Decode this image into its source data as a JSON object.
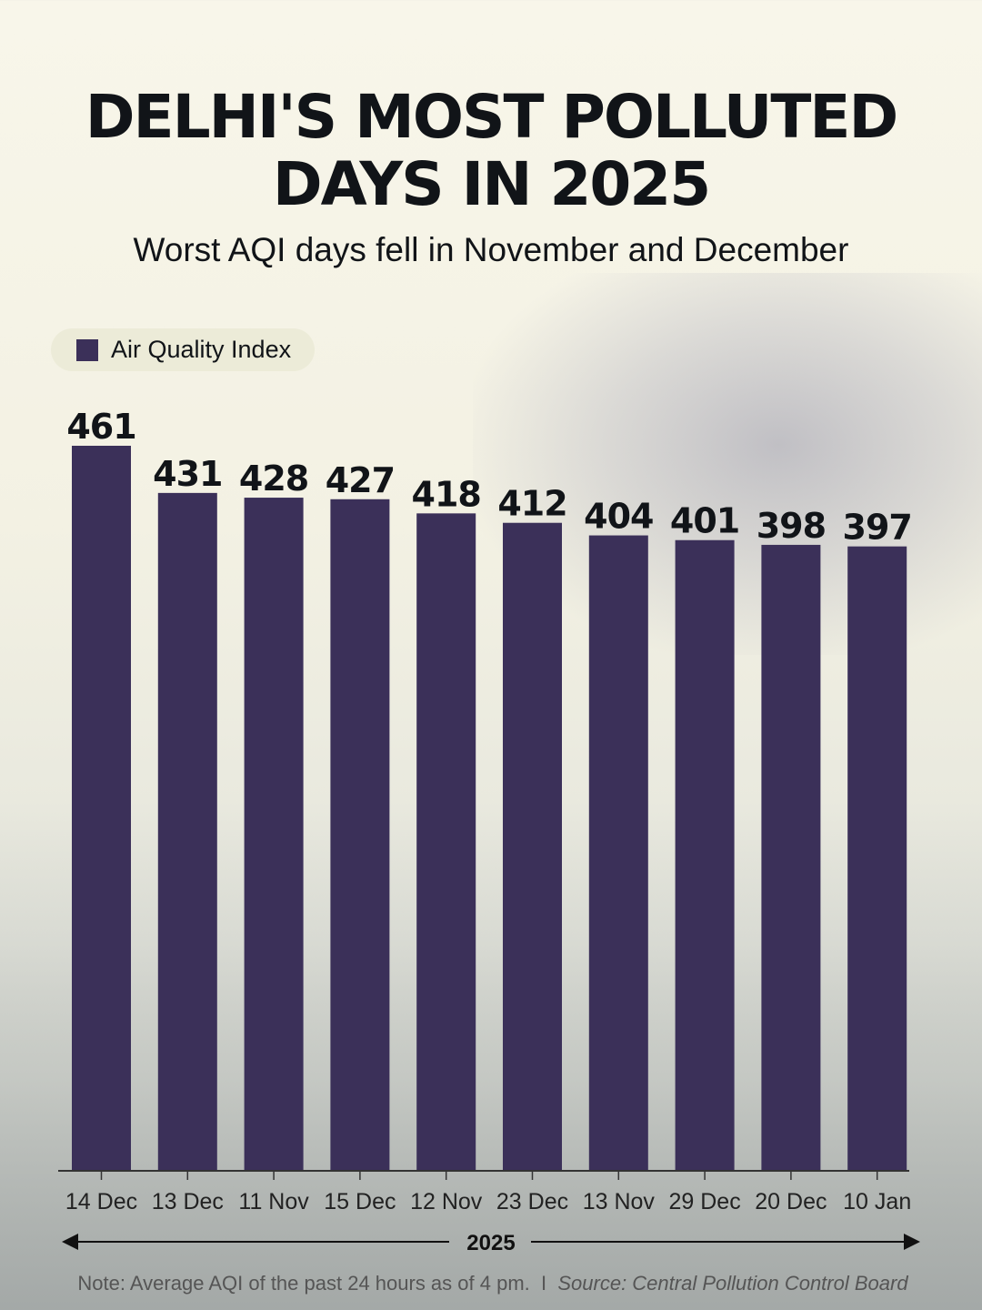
{
  "title": "DELHI'S MOST POLLUTED DAYS IN 2025",
  "subtitle": "Worst AQI days fell in November and December",
  "legend": {
    "label": "Air Quality Index"
  },
  "note": {
    "text": "Note: Average AQI of the past 24 hours as of 4 pm.",
    "separator": "I",
    "source": "Source: Central Pollution Control Board"
  },
  "colors": {
    "bar": "#3b3059",
    "text": "#111418",
    "background": "#f5f3e6"
  },
  "chart_data": {
    "type": "bar",
    "title": "DELHI'S MOST POLLUTED DAYS IN 2025",
    "subtitle": "Worst AQI days fell in November and December",
    "xlabel": "2025",
    "ylabel": "",
    "categories": [
      "14 Dec",
      "13 Dec",
      "11 Nov",
      "15 Dec",
      "12 Nov",
      "23 Dec",
      "13 Nov",
      "29 Dec",
      "20 Dec",
      "10 Jan"
    ],
    "series": [
      {
        "name": "Air Quality Index",
        "values": [
          461,
          431,
          428,
          427,
          418,
          412,
          404,
          401,
          398,
          397
        ]
      }
    ],
    "ylim": [
      0,
      461
    ],
    "grid": false,
    "legend": "top-left"
  }
}
